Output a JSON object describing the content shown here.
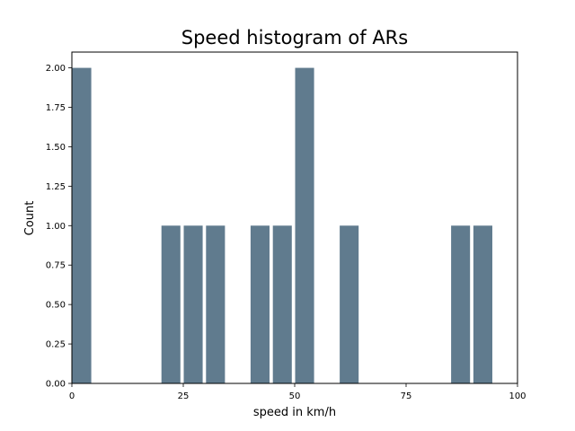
{
  "chart_data": {
    "type": "bar",
    "title": "Speed histogram of ARs",
    "xlabel": "speed in km/h",
    "ylabel": "Count",
    "xlim": [
      0,
      100
    ],
    "ylim": [
      0,
      2.1
    ],
    "xticks": [
      0,
      25,
      50,
      75,
      100
    ],
    "yticks": [
      "0.00",
      "0.25",
      "0.50",
      "0.75",
      "1.00",
      "1.25",
      "1.50",
      "1.75",
      "2.00"
    ],
    "bar_color": "#607b8e",
    "grid": false,
    "bins": [
      {
        "start": 0,
        "end": 5,
        "count": 2
      },
      {
        "start": 20,
        "end": 25,
        "count": 1
      },
      {
        "start": 25,
        "end": 30,
        "count": 1
      },
      {
        "start": 30,
        "end": 35,
        "count": 1
      },
      {
        "start": 40,
        "end": 45,
        "count": 1
      },
      {
        "start": 45,
        "end": 50,
        "count": 1
      },
      {
        "start": 50,
        "end": 55,
        "count": 2
      },
      {
        "start": 60,
        "end": 65,
        "count": 1
      },
      {
        "start": 85,
        "end": 90,
        "count": 1
      },
      {
        "start": 90,
        "end": 95,
        "count": 1
      }
    ]
  }
}
